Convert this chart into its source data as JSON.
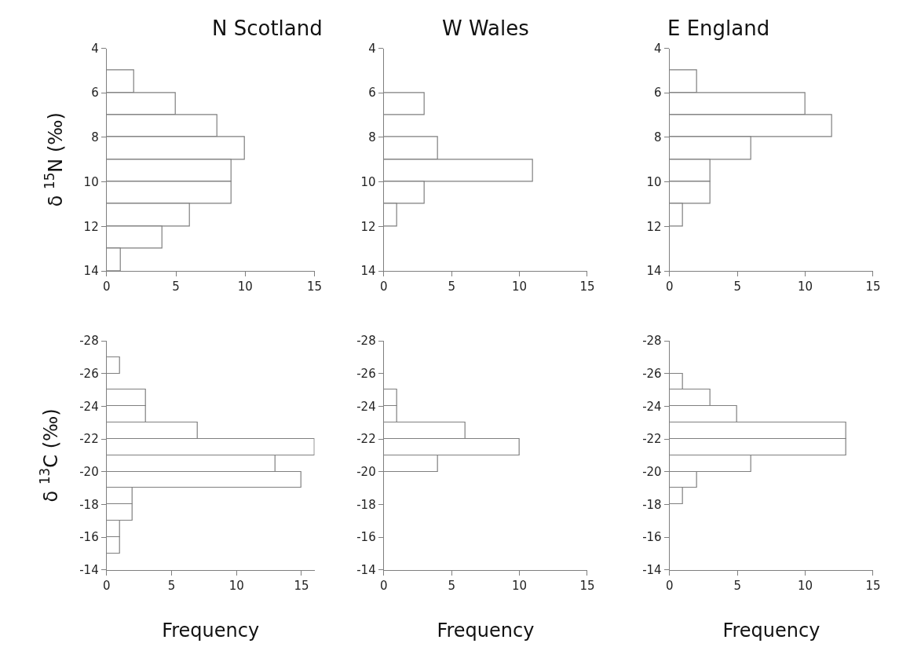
{
  "chart_data": [
    {
      "type": "histogram",
      "orientation": "horizontal",
      "title": "N Scotland",
      "ylabel": "δ $^{15}$N (‰)",
      "bins": [
        5,
        6,
        7,
        8,
        9,
        10,
        11,
        12,
        13,
        14
      ],
      "values": [
        2,
        5,
        8,
        10,
        9,
        9,
        6,
        4,
        1
      ],
      "color": "#ffffff",
      "xlim": [
        0,
        15
      ],
      "xticks": [
        0,
        5,
        10,
        15
      ],
      "ylim": [
        14,
        4
      ],
      "yticks": [
        4,
        6,
        8,
        10,
        12,
        14
      ]
    },
    {
      "type": "histogram",
      "orientation": "horizontal",
      "title": "W Wales",
      "bins": [
        6,
        7,
        8,
        9,
        10,
        11,
        12
      ],
      "values": [
        3,
        0,
        4,
        11,
        3,
        1
      ],
      "color": "#ffffff",
      "xlim": [
        0,
        15
      ],
      "xticks": [
        0,
        5,
        10,
        15
      ],
      "ylim": [
        14,
        4
      ],
      "yticks": [
        4,
        6,
        8,
        10,
        12,
        14
      ]
    },
    {
      "type": "histogram",
      "orientation": "horizontal",
      "title": "E England",
      "bins": [
        5,
        6,
        7,
        8,
        9,
        10,
        11,
        12
      ],
      "values": [
        2,
        10,
        12,
        6,
        3,
        3,
        1
      ],
      "color": "#ffffff",
      "xlim": [
        0,
        15
      ],
      "xticks": [
        0,
        5,
        10,
        15
      ],
      "ylim": [
        14,
        4
      ],
      "yticks": [
        4,
        6,
        8,
        10,
        12,
        14
      ]
    },
    {
      "type": "histogram",
      "orientation": "horizontal",
      "ylabel": "δ $^{13}$C (‰)",
      "xlabel": "Frequency",
      "bins": [
        -27,
        -26,
        -25,
        -24,
        -23,
        -22,
        -21,
        -20,
        -19,
        -18,
        -17,
        -16,
        -15
      ],
      "values": [
        1,
        0,
        3,
        3,
        7,
        16,
        13,
        15,
        2,
        2,
        1,
        1
      ],
      "color": "#ffffff",
      "xlim": [
        0,
        16
      ],
      "xticks": [
        0,
        5,
        10,
        15
      ],
      "ylim": [
        -14,
        -28
      ],
      "yticks": [
        -28,
        -26,
        -24,
        -22,
        -20,
        -18,
        -16,
        -14
      ]
    },
    {
      "type": "histogram",
      "orientation": "horizontal",
      "xlabel": "Frequency",
      "bins": [
        -25,
        -24,
        -23,
        -22,
        -21,
        -20
      ],
      "values": [
        1,
        1,
        6,
        10,
        4
      ],
      "color": "#ffffff",
      "xlim": [
        0,
        15
      ],
      "xticks": [
        0,
        5,
        10,
        15
      ],
      "ylim": [
        -14,
        -28
      ],
      "yticks": [
        -28,
        -26,
        -24,
        -22,
        -20,
        -18,
        -16,
        -14
      ]
    },
    {
      "type": "histogram",
      "orientation": "horizontal",
      "xlabel": "Frequency",
      "bins": [
        -26,
        -25,
        -24,
        -23,
        -22,
        -21,
        -20,
        -19,
        -18
      ],
      "values": [
        1,
        3,
        5,
        13,
        13,
        6,
        2,
        1
      ],
      "color": "#ffffff",
      "xlim": [
        0,
        15
      ],
      "xticks": [
        0,
        5,
        10,
        15
      ],
      "ylim": [
        -14,
        -28
      ],
      "yticks": [
        -28,
        -26,
        -24,
        -22,
        -20,
        -18,
        -16,
        -14
      ]
    }
  ]
}
